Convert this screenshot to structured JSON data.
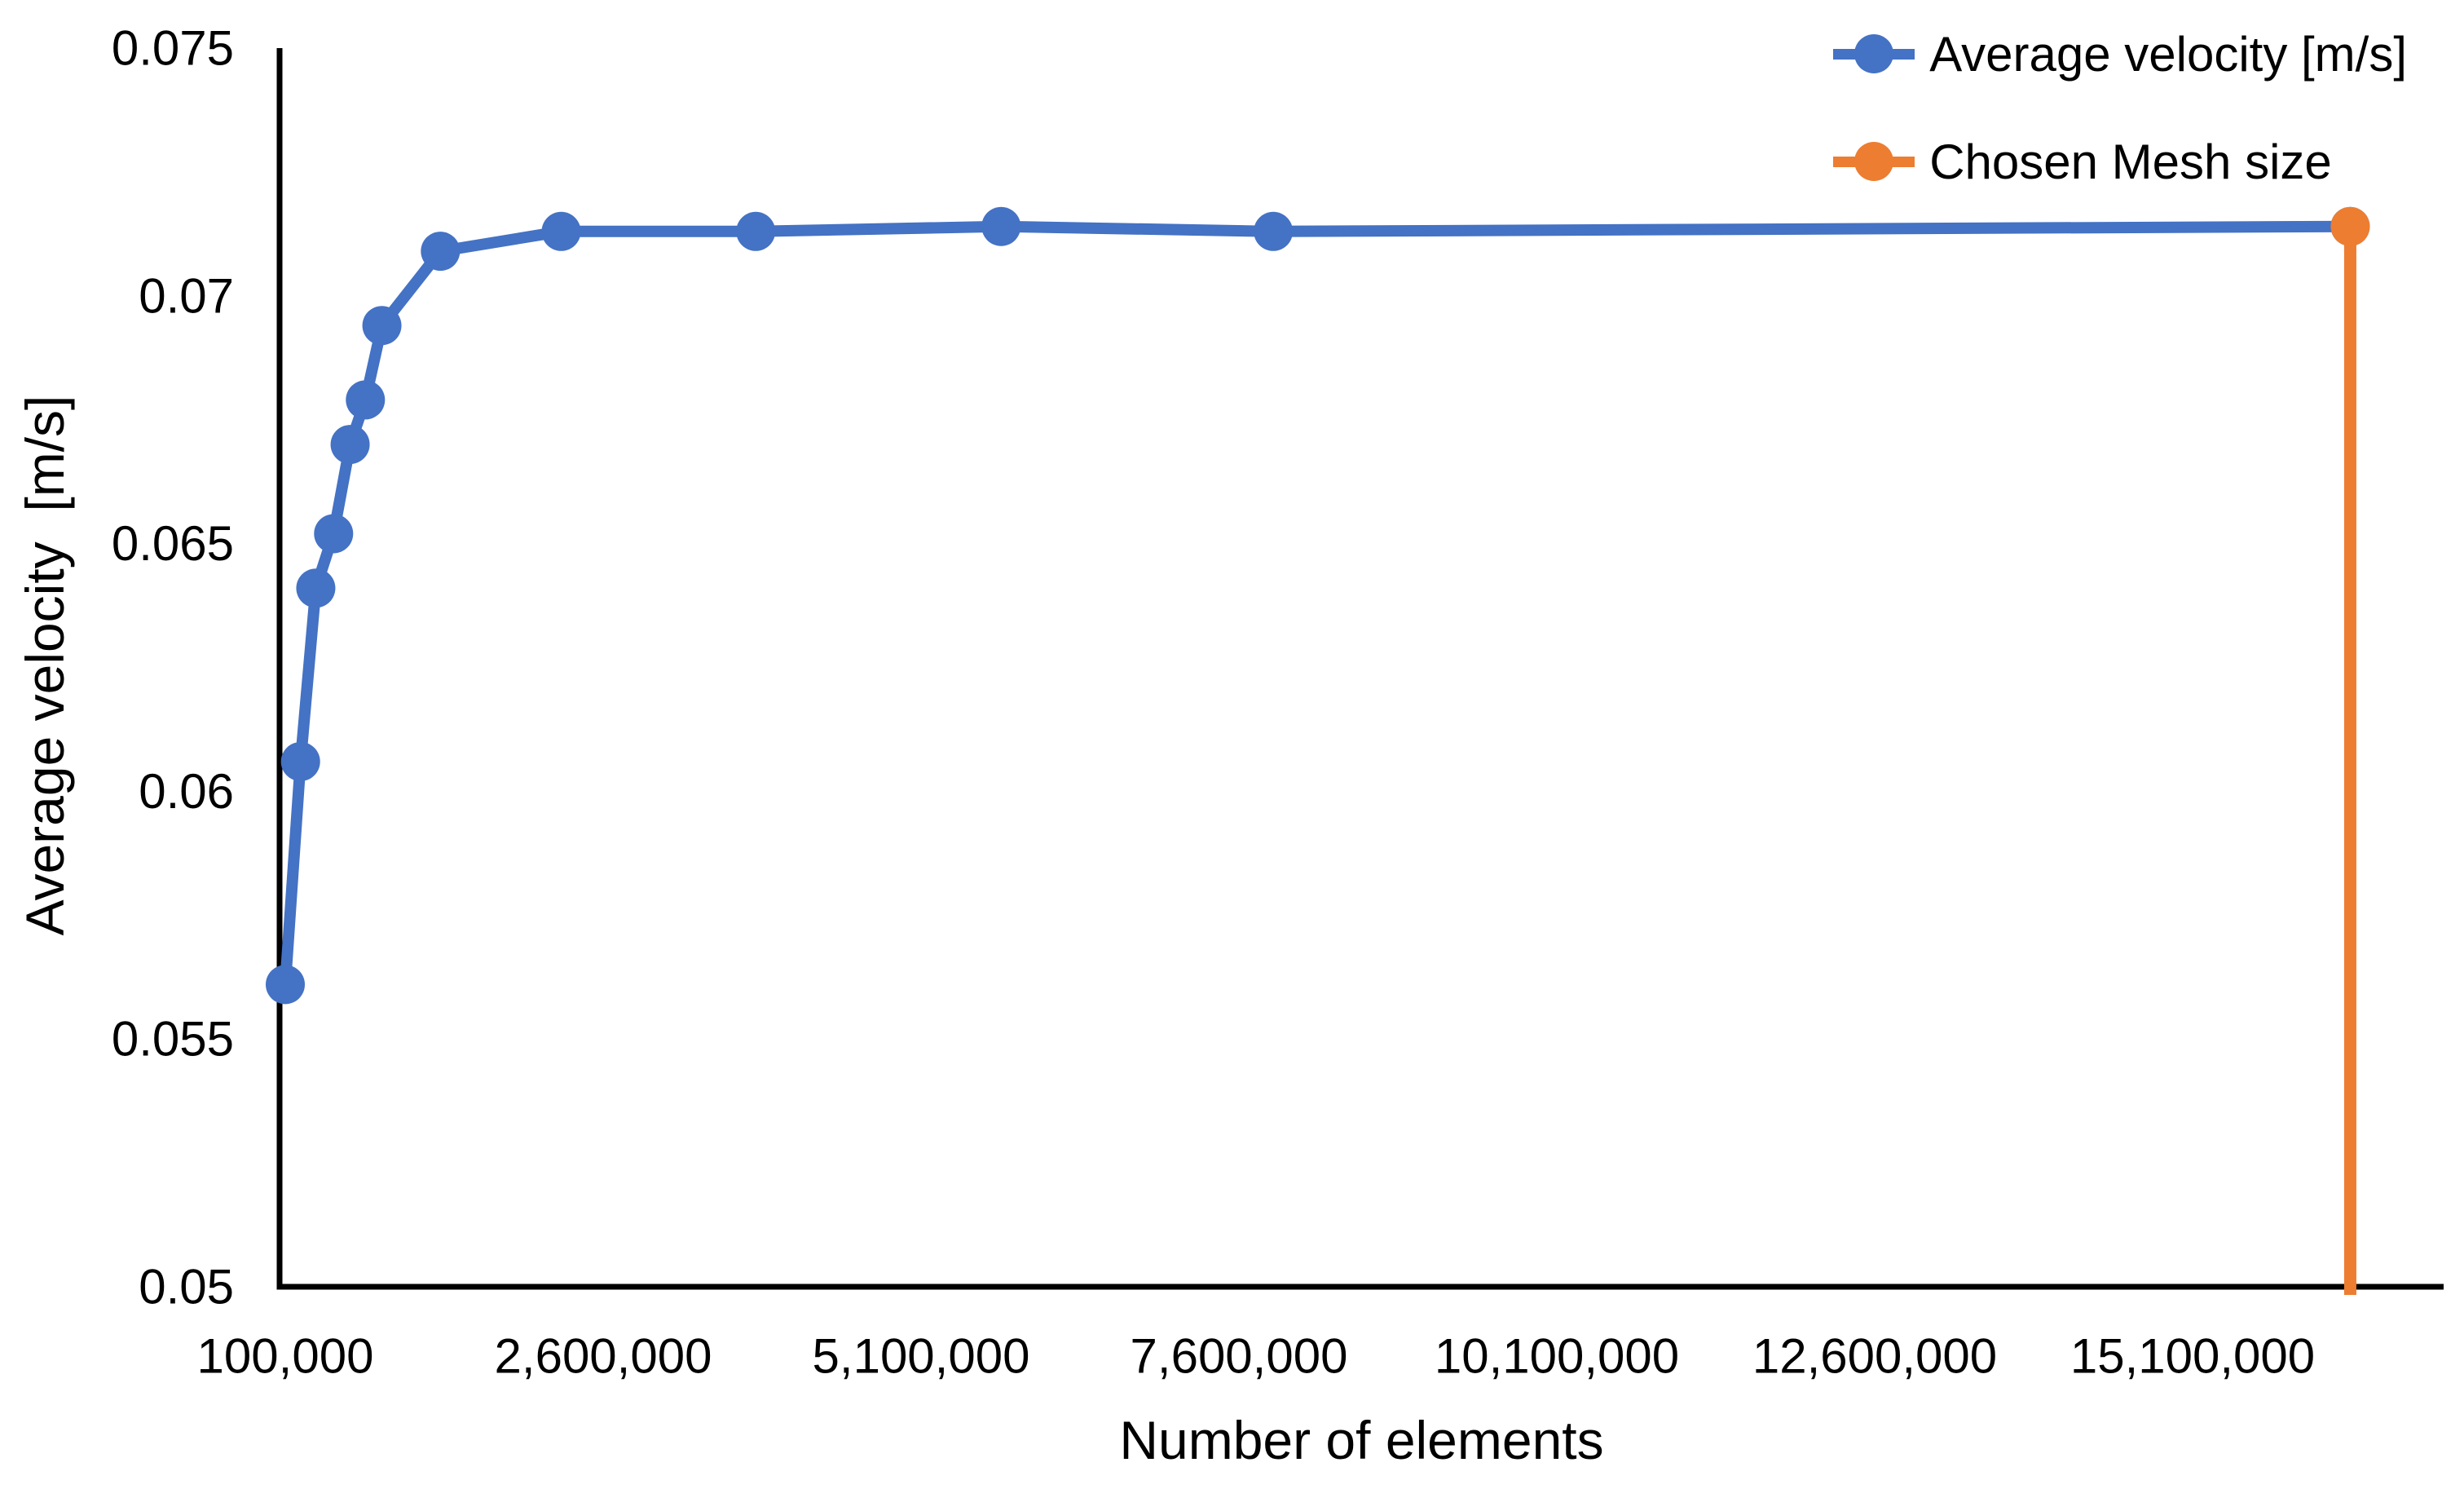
{
  "chart_data": {
    "type": "line",
    "title": "",
    "xlabel": "Number of elements",
    "ylabel": "Average velocity  [m/s]",
    "xlim": [
      100000,
      17100000
    ],
    "ylim": [
      0.05,
      0.075
    ],
    "grid": false,
    "legend_position": "top-right",
    "x_ticks": [
      100000,
      2600000,
      5100000,
      7600000,
      10100000,
      12600000,
      15100000
    ],
    "x_tick_labels": [
      "100,000",
      "2,600,000",
      "5,100,000",
      "7,600,000",
      "10,100,000",
      "12,600,000",
      "15,100,000"
    ],
    "y_ticks": [
      0.075,
      0.07,
      0.065,
      0.06,
      0.055,
      0.05
    ],
    "y_tick_labels": [
      "0.075",
      "0.07",
      "0.065",
      "0.06",
      "0.055",
      "0.05"
    ],
    "series": [
      {
        "name": "Average velocity [m/s]",
        "color": "#4472C4",
        "style": "line+marker",
        "points": [
          [
            100000,
            0.0561
          ],
          [
            220000,
            0.0606
          ],
          [
            340000,
            0.0641
          ],
          [
            480000,
            0.0652
          ],
          [
            610000,
            0.067
          ],
          [
            730000,
            0.0679
          ],
          [
            860000,
            0.0694
          ],
          [
            1320000,
            0.0709
          ],
          [
            2270000,
            0.0713
          ],
          [
            3800000,
            0.0713
          ],
          [
            5730000,
            0.0714
          ],
          [
            7870000,
            0.0713
          ],
          [
            16340000,
            0.0714
          ]
        ]
      },
      {
        "name": "Chosen Mesh size",
        "color": "#ED7D31",
        "style": "vline+marker",
        "points": [
          [
            16340000,
            0.05
          ],
          [
            16340000,
            0.0714
          ]
        ]
      }
    ]
  },
  "legend": {
    "items": [
      {
        "label": "Average velocity [m/s]",
        "color": "#4472C4"
      },
      {
        "label": "Chosen Mesh size",
        "color": "#ED7D31"
      }
    ]
  },
  "colors": {
    "series_blue": "#4472C4",
    "series_orange": "#ED7D31",
    "axis": "#000000",
    "text": "#000000",
    "background": "#FFFFFF"
  }
}
